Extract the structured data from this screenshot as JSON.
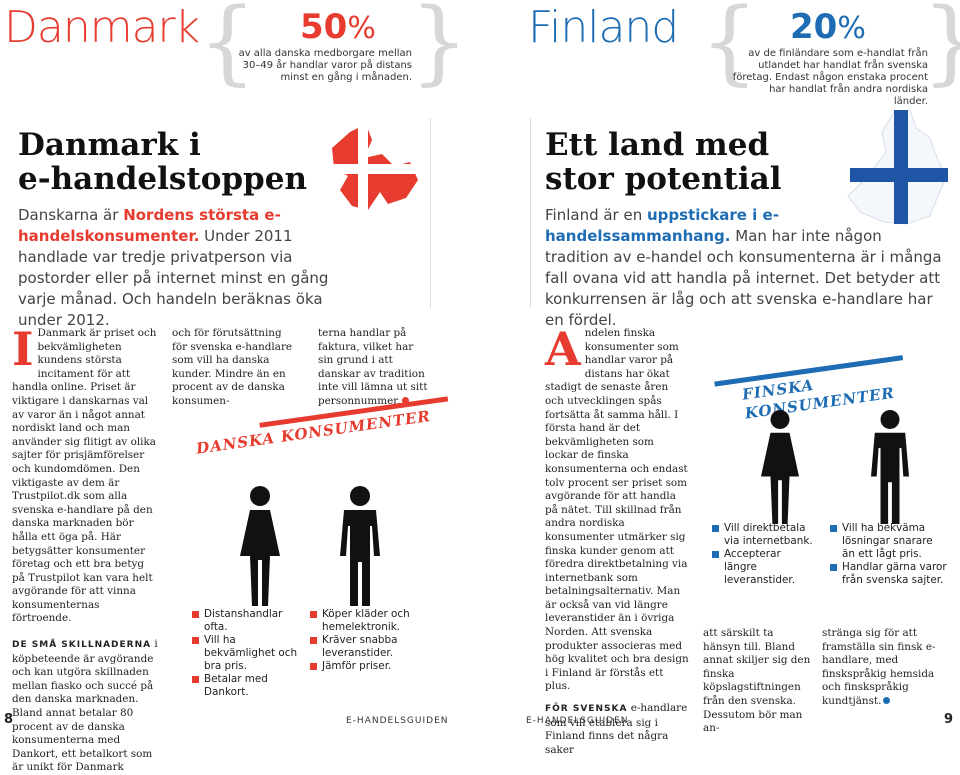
{
  "top": {
    "left_country": "Danmark",
    "left_stat_value": "50",
    "left_stat_unit": "%",
    "left_stat_text": "av alla danska medborgare mellan 30–49 år handlar varor på distans minst en gång i månaden.",
    "right_country": "Finland",
    "right_stat_value": "20",
    "right_stat_unit": "%",
    "right_stat_text": "av de finländare som e-handlat från utlandet har handlat från svenska företag. Endast någon enstaka procent har handlat från andra nordiska länder."
  },
  "left": {
    "headline": "Danmark i\ne-handelstoppen",
    "ingress_pre": "Danskarna är ",
    "ingress_bold": "Nordens största e-handelskonsumenter.",
    "ingress_post": " Under 2011 handlade var tredje privatperson via postorder eller på internet minst en gång varje månad. Och handeln beräknas öka under 2012.",
    "col1_dropcap": "I",
    "col1_p1": "Danmark är priset och bekvämligheten kundens största incitament för att handla online. Priset är viktigare i danskarnas val av varor än i något annat nordiskt land och man använder sig flitigt av olika sajter för prisjämförelser och kundomdömen. Den viktigaste av dem är Trustpilot.dk som alla svenska e-handlare på den danska marknaden bör hålla ett öga på. Här betygsätter konsumenter företag och ett bra betyg på Trustpilot kan vara helt avgörande för att vinna konsumenternas förtroende.",
    "col1_lead": "DE SMÅ SKILLNADERNA",
    "col1_p2": " i köpbeteende är avgörande och kan utgöra skillnaden mellan fiasko och succé på den danska marknaden. Bland annat betalar 80 procent av de danska konsumenterna med Dankort, ett betalkort som är unikt för Danmark",
    "col2_p1": "och för förutsättning för svenska e-handlare som vill ha danska kunder. Mindre än en procent av de danska konsumen-",
    "col3_p1": "terna handlar på faktura, vilket har sin grund i att danskar av tradition inte vill lämna ut sitt personnummer.",
    "banner": "DANSKA KONSUMENTER",
    "women_bullets": [
      "Distanshandlar ofta.",
      "Vill ha bekvämlighet och bra pris.",
      "Betalar med Dankort."
    ],
    "men_bullets": [
      "Köper kläder och hemelektronik.",
      "Kräver snabba leveranstider.",
      "Jämför priser."
    ],
    "page_number": "8",
    "footer": "E-HANDELSGUIDEN"
  },
  "right": {
    "headline": "Ett land med\nstor potential",
    "ingress_pre": "Finland är en ",
    "ingress_bold": "uppstickare i e-handelssammanhang.",
    "ingress_post": " Man har inte någon tradition av e-handel och konsumenterna är i många fall ovana vid att handla på internet. Det betyder att konkurrensen är låg och att svenska e-handlare har en fördel.",
    "col1_dropcap": "A",
    "col1_p1": "ndelen finska konsumenter som handlar varor på distans har ökat stadigt de senaste åren och utvecklingen spås fortsätta åt samma håll. I första hand är det bekvämligheten som lockar de finska konsumenterna och endast tolv procent ser priset som avgörande för att handla på nätet. Till skillnad från andra nordiska konsumenter utmärker sig finska kunder genom att föredra direktbetalning via internetbank som betalningsalternativ. Man är också van vid längre leveranstider än i övriga Norden. Att svenska produkter associeras med hög kvalitet och bra design i Finland är förstås ett plus.",
    "col1_lead": "FÖR SVENSKA",
    "col1_p2": " e-handlare som vill etablera sig i Finland finns det några saker",
    "col2_p1": "att särskilt ta hänsyn till. Bland annat skiljer sig den finska köpslagstiftningen från den svenska. Dessutom bör man an-",
    "col3_p1": "stränga sig för att framställa sin finsk e-handlare, med finskspråkig hemsida och finskspråkig kundtjänst.",
    "banner": "FINSKA KONSUMENTER",
    "women_bullets": [
      "Vill direktbetala via internetbank.",
      "Accepterar längre leveranstider."
    ],
    "men_bullets": [
      "Vill ha bekväma lösningar snarare än ett lågt pris.",
      "Handlar gärna varor från svenska sajter."
    ],
    "page_number": "9",
    "footer": "E-HANDELSGUIDEN"
  },
  "colors": {
    "danish_red": "#e63b2e",
    "finnish_blue": "#1e6cb3",
    "pictogram": "#111111"
  },
  "icons": [
    "denmark-map-flag-icon",
    "finland-map-flag-icon",
    "woman-icon",
    "man-icon"
  ]
}
